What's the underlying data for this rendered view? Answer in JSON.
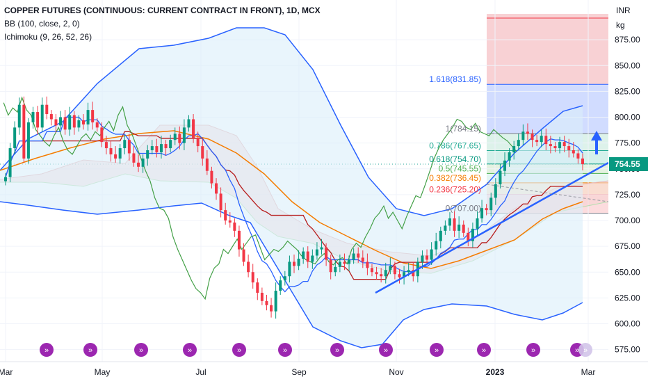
{
  "header": {
    "title": "COPPER FUTURES (CONTINUOUS: CURRENT CONTRACT IN FRONT), 1D, MCX",
    "indicators": [
      "BB (100, close, 2, 0)",
      "Ichimoku (9, 26, 52, 26)"
    ]
  },
  "chart_data": {
    "type": "candlestick",
    "currency": "INR",
    "unit": "kg",
    "y_ticks": [
      "875.00",
      "850.00",
      "825.00",
      "800.00",
      "775.00",
      "750.00",
      "725.00",
      "700.00",
      "675.00",
      "650.00",
      "625.00",
      "600.00",
      "575.00"
    ],
    "x_ticks": [
      "Mar",
      "May",
      "Jul",
      "Sep",
      "Nov",
      "2023",
      "Mar"
    ],
    "ylim": [
      562,
      900
    ],
    "last_price": "754.55",
    "fib_levels": [
      {
        "label": "1.618(831.85)",
        "value": 831.85,
        "color": "#2962ff"
      },
      {
        "label": "1(784.15)",
        "value": 784.15,
        "color": "#787b86"
      },
      {
        "label": "0.786(767.65)",
        "value": 767.65,
        "color": "#22ab94"
      },
      {
        "label": "0.618(754.70)",
        "value": 754.7,
        "color": "#089981"
      },
      {
        "label": "0.5(745.55)",
        "value": 745.55,
        "color": "#4caf50"
      },
      {
        "label": "0.382(736.45)",
        "value": 736.45,
        "color": "#f57c00"
      },
      {
        "label": "0.236(725.20)",
        "value": 725.2,
        "color": "#f23645"
      },
      {
        "label": "0(707.00)",
        "value": 707.0,
        "color": "#787b86"
      }
    ],
    "candle_closes": [
      742,
      770,
      790,
      812,
      760,
      795,
      805,
      790,
      812,
      803,
      798,
      792,
      800,
      788,
      802,
      790,
      797,
      793,
      807,
      795,
      790,
      776,
      770,
      764,
      760,
      770,
      778,
      765,
      756,
      752,
      760,
      768,
      772,
      766,
      774,
      770,
      778,
      784,
      775,
      790,
      798,
      780,
      772,
      760,
      748,
      736,
      726,
      710,
      700,
      698,
      690,
      672,
      660,
      650,
      640,
      630,
      622,
      618,
      612,
      632,
      642,
      646,
      660,
      656,
      663,
      670,
      660,
      666,
      672,
      674,
      662,
      650,
      655,
      660,
      658,
      662,
      668,
      664,
      660,
      654,
      650,
      648,
      646,
      652,
      656,
      648,
      645,
      650,
      652,
      646,
      660,
      666,
      662,
      672,
      680,
      690,
      695,
      702,
      690,
      696,
      688,
      680,
      692,
      702,
      712,
      710,
      722,
      735,
      748,
      758,
      766,
      772,
      778,
      786,
      784,
      778,
      776,
      782,
      774,
      772,
      770,
      776,
      772,
      768,
      765,
      760,
      754.55
    ]
  }
}
